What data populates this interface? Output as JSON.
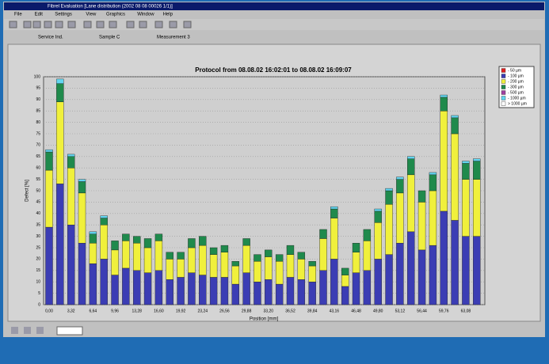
{
  "window": {
    "title": "Fibrel Evaluation [Lane distribution (2002 08 08 00026 1/1)]"
  },
  "menu": [
    "File",
    "Edit",
    "Settings",
    "View",
    "Graphics",
    "Window",
    "Help"
  ],
  "info": [
    "Service Ind.",
    "Sample C",
    "Measurement 3"
  ],
  "chart_data": {
    "type": "stacked_bar",
    "title": "Protocol from 08.08.02 16:02:01 to 08.08.02 16:09:07",
    "x_label": "Position [mm]",
    "y_label": "Defect [%]",
    "categories": [
      "0,00",
      null,
      "3,32",
      null,
      "6,64",
      null,
      "9,96",
      null,
      "13,28",
      null,
      "16,60",
      null,
      "19,92",
      null,
      "23,24",
      null,
      "26,56",
      null,
      "29,88",
      null,
      "33,20",
      null,
      "36,52",
      null,
      "39,84",
      null,
      "43,16",
      null,
      "46,48",
      null,
      "49,80",
      null,
      "53,12",
      null,
      "56,44",
      null,
      "59,76",
      null,
      "63,08",
      null
    ],
    "series": [
      {
        "name": "- 100 µm",
        "color": "#3b3db4",
        "values": [
          34,
          53,
          35,
          27,
          18,
          20,
          13,
          16,
          15,
          14,
          15,
          11,
          12,
          14,
          13,
          12,
          12,
          9,
          14,
          10,
          11,
          9,
          12,
          11,
          10,
          15,
          20,
          8,
          14,
          15,
          20,
          22,
          27,
          32,
          24,
          26,
          41,
          37,
          30,
          30
        ]
      },
      {
        "name": "- 200 µm",
        "color": "#f0f03c",
        "values": [
          25,
          36,
          25,
          22,
          9,
          15,
          11,
          12,
          12,
          11,
          13,
          9,
          8,
          11,
          13,
          10,
          11,
          8,
          12,
          9,
          10,
          10,
          10,
          9,
          7,
          14,
          18,
          5,
          9,
          13,
          16,
          22,
          22,
          25,
          21,
          24,
          44,
          38,
          25,
          25
        ]
      },
      {
        "name": "- 300 µm",
        "color": "#1f8a4c",
        "values": [
          8,
          8,
          5,
          5,
          4,
          3,
          4,
          3,
          3,
          4,
          3,
          3,
          3,
          4,
          4,
          3,
          3,
          2,
          3,
          3,
          3,
          3,
          4,
          3,
          2,
          4,
          4,
          3,
          4,
          5,
          5,
          6,
          6,
          7,
          5,
          7,
          6,
          7,
          7,
          8
        ]
      },
      {
        "name": "- 1000 µm",
        "color": "#62d6f0",
        "values": [
          1,
          2,
          1,
          1,
          1,
          1,
          0,
          0,
          0,
          0,
          0,
          0,
          0,
          0,
          0,
          0,
          0,
          0,
          0,
          0,
          0,
          0,
          0,
          0,
          0,
          0,
          1,
          0,
          0,
          0,
          1,
          1,
          1,
          1,
          0,
          1,
          1,
          1,
          1,
          1
        ]
      }
    ],
    "legend": [
      {
        "label": "- 50 µm",
        "color": "#e02020"
      },
      {
        "label": "- 100 µm",
        "color": "#3b3db4"
      },
      {
        "label": "- 200 µm",
        "color": "#f0f03c"
      },
      {
        "label": "- 300 µm",
        "color": "#1f8a4c"
      },
      {
        "label": "- 500 µm",
        "color": "#a040a0"
      },
      {
        "label": "- 1000 µm",
        "color": "#62d6f0"
      },
      {
        "label": "> 1000 µm",
        "color": "#ffffff"
      }
    ],
    "ylim": [
      0,
      100
    ],
    "yticks": [
      0,
      5,
      10,
      15,
      20,
      25,
      30,
      35,
      40,
      45,
      50,
      55,
      60,
      65,
      70,
      75,
      80,
      85,
      90,
      95,
      100
    ],
    "grid": true
  }
}
